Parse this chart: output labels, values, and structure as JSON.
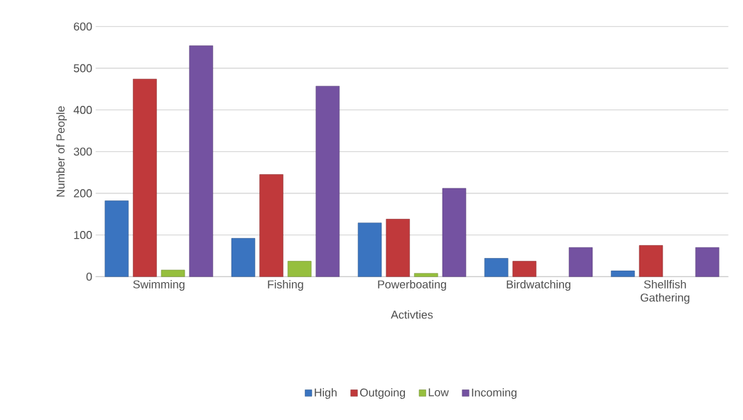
{
  "chart_data": {
    "type": "bar",
    "xlabel": "Activties",
    "ylabel": "Number of People",
    "categories": [
      "Swimming",
      "Fishing",
      "Powerboating",
      "Birdwatching",
      "Shellfish Gathering"
    ],
    "series": [
      {
        "name": "High",
        "color": "#3a74c0",
        "values": [
          182,
          92,
          129,
          44,
          14
        ]
      },
      {
        "name": "Outgoing",
        "color": "#c0393b",
        "values": [
          474,
          245,
          138,
          37,
          75
        ]
      },
      {
        "name": "Low",
        "color": "#96bf3e",
        "values": [
          16,
          37,
          8,
          null,
          null
        ]
      },
      {
        "name": "Incoming",
        "color": "#7452a1",
        "values": [
          554,
          457,
          212,
          70,
          70
        ]
      }
    ],
    "ylim": [
      0,
      600
    ],
    "yticks": [
      0,
      100,
      200,
      300,
      400,
      500,
      600
    ],
    "grid": "y",
    "legend": "bottom"
  }
}
